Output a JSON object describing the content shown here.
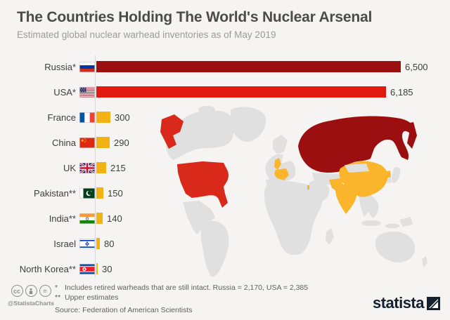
{
  "page": {
    "title": "The Countries Holding The World's Nuclear Arsenal",
    "subtitle": "Estimated global nuclear warhead inventories as of May 2019"
  },
  "chart_data": {
    "type": "bar",
    "orientation": "horizontal",
    "title": "The Countries Holding The World's Nuclear Arsenal",
    "subtitle": "Estimated global nuclear warhead inventories as of May 2019",
    "xlim": [
      0,
      6500
    ],
    "grid": false,
    "legend": false,
    "categories": [
      "Russia*",
      "USA*",
      "France",
      "China",
      "UK",
      "Pakistan**",
      "India**",
      "Israel",
      "North Korea**"
    ],
    "values": [
      6500,
      6185,
      300,
      290,
      215,
      150,
      140,
      80,
      30
    ],
    "rows": [
      {
        "label": "Russia*",
        "flag": "russia",
        "value": 6500,
        "display": "6,500",
        "color": "#9c0f10"
      },
      {
        "label": "USA*",
        "flag": "usa",
        "value": 6185,
        "display": "6,185",
        "color": "#e2190e"
      },
      {
        "label": "France",
        "flag": "france",
        "value": 300,
        "display": "300",
        "color": "#f3b214"
      },
      {
        "label": "China",
        "flag": "china",
        "value": 290,
        "display": "290",
        "color": "#f3b214"
      },
      {
        "label": "UK",
        "flag": "uk",
        "value": 215,
        "display": "215",
        "color": "#f3b214"
      },
      {
        "label": "Pakistan**",
        "flag": "pakistan",
        "value": 150,
        "display": "150",
        "color": "#f3b214"
      },
      {
        "label": "India**",
        "flag": "india",
        "value": 140,
        "display": "140",
        "color": "#f3b214"
      },
      {
        "label": "Israel",
        "flag": "israel",
        "value": 80,
        "display": "80",
        "color": "#f3b214"
      },
      {
        "label": "North Korea**",
        "flag": "north-korea",
        "value": 30,
        "display": "30",
        "color": "#f3b214"
      }
    ],
    "map": {
      "base_land_color": "#e0e0e0",
      "background_color": "#f5f4f2",
      "highlights": [
        {
          "country": "Russia",
          "color": "#9c0f10"
        },
        {
          "country": "USA",
          "color": "#d8291a"
        },
        {
          "country": "China",
          "color": "#fbb52c"
        },
        {
          "country": "India",
          "color": "#fbb52c"
        },
        {
          "country": "Pakistan",
          "color": "#fbb52c"
        },
        {
          "country": "France",
          "color": "#fbb52c"
        },
        {
          "country": "UK",
          "color": "#fbb52c"
        },
        {
          "country": "Israel",
          "color": "#fbb52c"
        },
        {
          "country": "North Korea",
          "color": "#fbb52c"
        }
      ]
    }
  },
  "footer": {
    "license_icons": [
      "cc",
      "attribution",
      "no-derivatives"
    ],
    "cc_label": "cc",
    "nd_label": "=",
    "handle": "@StatistaCharts",
    "note1_marker": "*",
    "note1": "Includes retired warheads that are still intact. Russia = 2,170, USA = 2,385",
    "note2_marker": "**",
    "note2": "Upper estimates",
    "source": "Source: Federation of American Scientists",
    "brand": "statista"
  }
}
